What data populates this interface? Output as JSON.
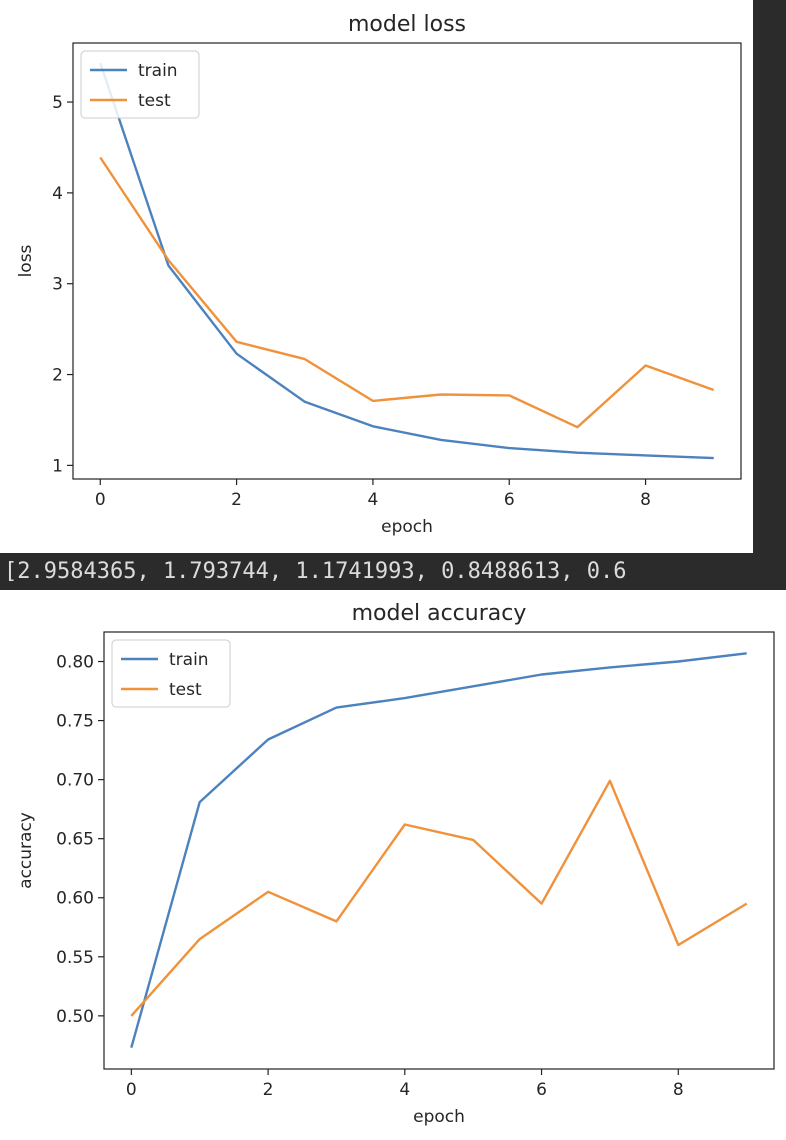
{
  "output_text": "[2.9584365, 1.793744, 1.1741993, 0.8488613, 0.6",
  "colors": {
    "train": "#4c82bd",
    "test": "#f0923b",
    "background": "#2b2b2b"
  },
  "chart_data": [
    {
      "type": "line",
      "title": "model loss",
      "xlabel": "epoch",
      "ylabel": "loss",
      "x": [
        0,
        1,
        2,
        3,
        4,
        5,
        6,
        7,
        8,
        9
      ],
      "xlim": [
        -0.4,
        9.4
      ],
      "ylim": [
        0.85,
        5.65
      ],
      "xticks": [
        0,
        2,
        4,
        6,
        8
      ],
      "yticks": [
        1,
        2,
        3,
        4,
        5
      ],
      "xtick_labels": [
        "0",
        "2",
        "4",
        "6",
        "8"
      ],
      "ytick_labels": [
        "1",
        "2",
        "3",
        "4",
        "5"
      ],
      "legend_position": "upper left",
      "grid": false,
      "series": [
        {
          "name": "train",
          "color": "#4c82bd",
          "values": [
            5.43,
            3.2,
            2.23,
            1.7,
            1.43,
            1.28,
            1.19,
            1.14,
            1.11,
            1.08
          ]
        },
        {
          "name": "test",
          "color": "#f0923b",
          "values": [
            4.39,
            3.26,
            2.36,
            2.17,
            1.71,
            1.78,
            1.77,
            1.42,
            2.1,
            1.83
          ]
        }
      ]
    },
    {
      "type": "line",
      "title": "model accuracy",
      "xlabel": "epoch",
      "ylabel": "accuracy",
      "x": [
        0,
        1,
        2,
        3,
        4,
        5,
        6,
        7,
        8,
        9
      ],
      "xlim": [
        -0.4,
        9.4
      ],
      "ylim": [
        0.455,
        0.825
      ],
      "xticks": [
        0,
        2,
        4,
        6,
        8
      ],
      "yticks": [
        0.5,
        0.55,
        0.6,
        0.65,
        0.7,
        0.75,
        0.8
      ],
      "xtick_labels": [
        "0",
        "2",
        "4",
        "6",
        "8"
      ],
      "ytick_labels": [
        "0.50",
        "0.55",
        "0.60",
        "0.65",
        "0.70",
        "0.75",
        "0.80"
      ],
      "legend_position": "upper left",
      "grid": false,
      "series": [
        {
          "name": "train",
          "color": "#4c82bd",
          "values": [
            0.473,
            0.681,
            0.734,
            0.761,
            0.769,
            0.779,
            0.789,
            0.795,
            0.8,
            0.807
          ]
        },
        {
          "name": "test",
          "color": "#f0923b",
          "values": [
            0.5,
            0.565,
            0.605,
            0.58,
            0.662,
            0.649,
            0.595,
            0.699,
            0.56,
            0.595
          ]
        }
      ]
    }
  ]
}
